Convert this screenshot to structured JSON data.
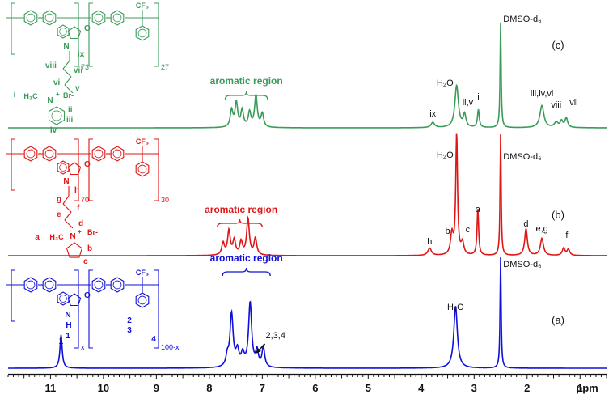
{
  "chart_data": {
    "type": "line",
    "xlabel": "ppm",
    "x_axis": {
      "min": 0.5,
      "max": 11.8,
      "reversed": true,
      "ticks": [
        11,
        10,
        9,
        8,
        7,
        6,
        5,
        4,
        3,
        2,
        1
      ]
    },
    "colors": {
      "a": "#1010d8",
      "b": "#e01515",
      "c": "#3c9a5a",
      "axis": "#111111"
    },
    "spectra": [
      {
        "panel": "(a)",
        "color_key": "a",
        "peaks": [
          {
            "ppm": 10.8,
            "h": 0.3,
            "w": 0.025
          },
          {
            "ppm": 7.66,
            "h": 0.09,
            "w": 0.03
          },
          {
            "ppm": 7.58,
            "h": 0.48,
            "w": 0.035
          },
          {
            "ppm": 7.47,
            "h": 0.14,
            "w": 0.035
          },
          {
            "ppm": 7.37,
            "h": 0.11,
            "w": 0.035
          },
          {
            "ppm": 7.23,
            "h": 0.58,
            "w": 0.035
          },
          {
            "ppm": 7.1,
            "h": 0.14,
            "w": 0.03
          },
          {
            "ppm": 6.98,
            "h": 0.18,
            "w": 0.03
          },
          {
            "ppm": 3.35,
            "h": 0.56,
            "w": 0.04
          },
          {
            "ppm": 2.5,
            "h": 1.0,
            "w": 0.012
          }
        ],
        "labels": [
          {
            "text": "aromatic region",
            "ppm": 7.3,
            "color_key": "a",
            "bracket": [
              7.75,
              6.85
            ]
          },
          {
            "text": "1",
            "ppm": 10.8
          },
          {
            "text": "2,3,4",
            "ppm": 6.95
          },
          {
            "text": "H₂O",
            "ppm": 3.35
          },
          {
            "text": "DMSO-d₆",
            "ppm": 2.1
          }
        ],
        "structure": {
          "labels": [
            "CF₃",
            "O",
            "N",
            "H",
            "1",
            "2",
            "3",
            "4"
          ],
          "subscripts": [
            "x",
            "100-x"
          ]
        }
      },
      {
        "panel": "(b)",
        "color_key": "b",
        "peaks": [
          {
            "ppm": 7.74,
            "h": 0.1,
            "w": 0.03
          },
          {
            "ppm": 7.63,
            "h": 0.2,
            "w": 0.03
          },
          {
            "ppm": 7.53,
            "h": 0.12,
            "w": 0.03
          },
          {
            "ppm": 7.4,
            "h": 0.11,
            "w": 0.03
          },
          {
            "ppm": 7.27,
            "h": 0.3,
            "w": 0.03
          },
          {
            "ppm": 7.13,
            "h": 0.14,
            "w": 0.03
          },
          {
            "ppm": 3.84,
            "h": 0.06,
            "w": 0.04
          },
          {
            "ppm": 3.42,
            "h": 0.17,
            "w": 0.03
          },
          {
            "ppm": 3.33,
            "h": 1.0,
            "w": 0.02
          },
          {
            "ppm": 3.22,
            "h": 0.1,
            "w": 0.03
          },
          {
            "ppm": 2.93,
            "h": 0.38,
            "w": 0.018
          },
          {
            "ppm": 2.5,
            "h": 1.0,
            "w": 0.012
          },
          {
            "ppm": 2.02,
            "h": 0.22,
            "w": 0.03
          },
          {
            "ppm": 1.72,
            "h": 0.14,
            "w": 0.035
          },
          {
            "ppm": 1.31,
            "h": 0.06,
            "w": 0.03
          },
          {
            "ppm": 1.22,
            "h": 0.05,
            "w": 0.03
          }
        ],
        "labels": [
          {
            "text": "aromatic region",
            "ppm": 7.4,
            "color_key": "b",
            "bracket": [
              7.85,
              7.0
            ]
          },
          {
            "text": "H₂O",
            "ppm": 3.55
          },
          {
            "text": "DMSO-d₆",
            "ppm": 2.1
          },
          {
            "text": "h",
            "ppm": 3.84
          },
          {
            "text": "b",
            "ppm": 3.45
          },
          {
            "text": "c",
            "ppm": 3.12
          },
          {
            "text": "a",
            "ppm": 2.93
          },
          {
            "text": "d",
            "ppm": 2.02
          },
          {
            "text": "e,g",
            "ppm": 1.72
          },
          {
            "text": "f",
            "ppm": 1.25
          }
        ],
        "structure": {
          "labels": [
            "CF₃",
            "O",
            "N",
            "h",
            "g",
            "f",
            "e",
            "d",
            "a",
            "H₃C",
            "N",
            "+",
            "Br-",
            "b",
            "c"
          ],
          "subscripts": [
            "70",
            "30"
          ]
        }
      },
      {
        "panel": "(c)",
        "color_key": "c",
        "peaks": [
          {
            "ppm": 7.58,
            "h": 0.16,
            "w": 0.03
          },
          {
            "ppm": 7.49,
            "h": 0.23,
            "w": 0.03
          },
          {
            "ppm": 7.38,
            "h": 0.16,
            "w": 0.03
          },
          {
            "ppm": 7.24,
            "h": 0.14,
            "w": 0.03
          },
          {
            "ppm": 7.12,
            "h": 0.3,
            "w": 0.03
          },
          {
            "ppm": 7.0,
            "h": 0.13,
            "w": 0.03
          },
          {
            "ppm": 3.78,
            "h": 0.05,
            "w": 0.04
          },
          {
            "ppm": 3.33,
            "h": 0.4,
            "w": 0.04
          },
          {
            "ppm": 3.18,
            "h": 0.12,
            "w": 0.03
          },
          {
            "ppm": 2.92,
            "h": 0.17,
            "w": 0.02
          },
          {
            "ppm": 2.5,
            "h": 1.0,
            "w": 0.012
          },
          {
            "ppm": 1.72,
            "h": 0.21,
            "w": 0.045
          },
          {
            "ppm": 1.45,
            "h": 0.05,
            "w": 0.04
          },
          {
            "ppm": 1.35,
            "h": 0.06,
            "w": 0.03
          },
          {
            "ppm": 1.26,
            "h": 0.09,
            "w": 0.03
          }
        ],
        "labels": [
          {
            "text": "aromatic region",
            "ppm": 7.3,
            "color_key": "c",
            "bracket": [
              7.7,
              6.9
            ]
          },
          {
            "text": "H₂O",
            "ppm": 3.55
          },
          {
            "text": "DMSO-d₆",
            "ppm": 2.1
          },
          {
            "text": "ix",
            "ppm": 3.78
          },
          {
            "text": "ii,v",
            "ppm": 3.15
          },
          {
            "text": "i",
            "ppm": 2.92
          },
          {
            "text": "iii,iv,vi",
            "ppm": 1.72
          },
          {
            "text": "viii",
            "ppm": 1.45
          },
          {
            "text": "vii",
            "ppm": 1.12
          }
        ],
        "structure": {
          "labels": [
            "CF₃",
            "O",
            "N",
            "ix",
            "viii",
            "vii",
            "vi",
            "v",
            "i",
            "H₃C",
            "N",
            "+",
            "Br-",
            "ii",
            "iii",
            "iv"
          ],
          "subscripts": [
            "73",
            "27"
          ]
        }
      }
    ]
  }
}
